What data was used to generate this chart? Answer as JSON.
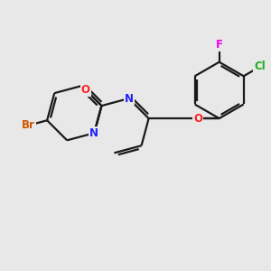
{
  "background_color": "#e8e8e8",
  "bond_color": "#1a1a1a",
  "atom_colors": {
    "N": "#2020ff",
    "O": "#ff2020",
    "Br": "#cc5500",
    "Cl": "#22aa22",
    "F": "#ee00ee",
    "C": "#1a1a1a"
  },
  "figsize": [
    3.0,
    3.0
  ],
  "dpi": 100
}
